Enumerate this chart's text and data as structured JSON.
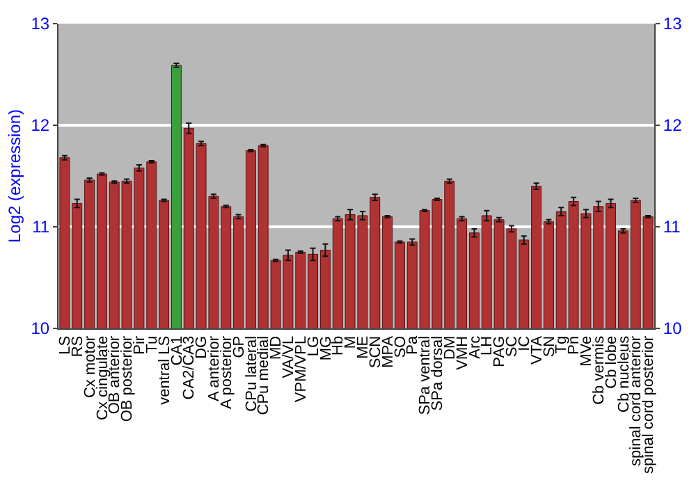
{
  "chart_data": {
    "type": "bar",
    "ylabel": "Log2 (expression)",
    "categories": [
      "LS",
      "RS",
      "Cx motor",
      "Cx cingulate",
      "OB anterior",
      "OB posterior",
      "Pir",
      "Tu",
      "ventral LS",
      "CA1",
      "CA2/CA3",
      "DG",
      "A anterior",
      "A posterior",
      "GP",
      "CPu lateral",
      "CPu medial",
      "MD",
      "VA/VL",
      "VPM/VPL",
      "LG",
      "MG",
      "Hb",
      "M",
      "ME",
      "SCN",
      "MPA",
      "SO",
      "Pa",
      "SPa ventral",
      "SPa dorsal",
      "DM",
      "VMH",
      "Arc",
      "LH",
      "PAG",
      "SC",
      "IC",
      "VTA",
      "SN",
      "Tg",
      "Pn",
      "MVe",
      "Cb vermis",
      "Cb lobe",
      "Cb nucleus",
      "spinal cord anterior",
      "spinal cord posterior"
    ],
    "values": [
      11.68,
      11.23,
      11.46,
      11.52,
      11.44,
      11.45,
      11.58,
      11.64,
      11.26,
      12.59,
      11.97,
      11.82,
      11.3,
      11.2,
      11.1,
      11.75,
      11.8,
      10.67,
      10.72,
      10.75,
      10.73,
      10.77,
      11.08,
      11.12,
      11.11,
      11.29,
      11.1,
      10.85,
      10.85,
      11.16,
      11.27,
      11.45,
      11.08,
      10.94,
      11.11,
      11.07,
      10.98,
      10.87,
      11.4,
      11.05,
      11.15,
      11.25,
      11.13,
      11.2,
      11.23,
      10.96,
      11.26,
      11.1
    ],
    "errors": [
      0.02,
      0.04,
      0.02,
      0.01,
      0.01,
      0.02,
      0.03,
      0.01,
      0.01,
      0.02,
      0.05,
      0.02,
      0.02,
      0.01,
      0.02,
      0.01,
      0.01,
      0.01,
      0.05,
      0.01,
      0.06,
      0.06,
      0.02,
      0.05,
      0.04,
      0.03,
      0.01,
      0.01,
      0.03,
      0.01,
      0.01,
      0.02,
      0.02,
      0.04,
      0.05,
      0.02,
      0.03,
      0.04,
      0.03,
      0.02,
      0.04,
      0.04,
      0.04,
      0.05,
      0.04,
      0.02,
      0.02,
      0.01
    ],
    "colors": [
      "#b03232",
      "#b03232",
      "#b03232",
      "#b03232",
      "#b03232",
      "#b03232",
      "#b03232",
      "#b03232",
      "#b03232",
      "#3c9e3c",
      "#b03232",
      "#b03232",
      "#b03232",
      "#b03232",
      "#b03232",
      "#b03232",
      "#b03232",
      "#b03232",
      "#b03232",
      "#b03232",
      "#b03232",
      "#b03232",
      "#b03232",
      "#b03232",
      "#b03232",
      "#b03232",
      "#b03232",
      "#b03232",
      "#b03232",
      "#b03232",
      "#b03232",
      "#b03232",
      "#b03232",
      "#b03232",
      "#b03232",
      "#b03232",
      "#b03232",
      "#b03232",
      "#b03232",
      "#b03232",
      "#b03232",
      "#b03232",
      "#b03232",
      "#b03232",
      "#b03232",
      "#b03232",
      "#b03232",
      "#b03232"
    ],
    "ylim": [
      10,
      13
    ],
    "yticks": [
      10,
      11,
      12,
      13
    ],
    "y2lim": [
      10,
      13
    ],
    "y2ticks": [
      10,
      11,
      12,
      13
    ],
    "grid": "y"
  }
}
